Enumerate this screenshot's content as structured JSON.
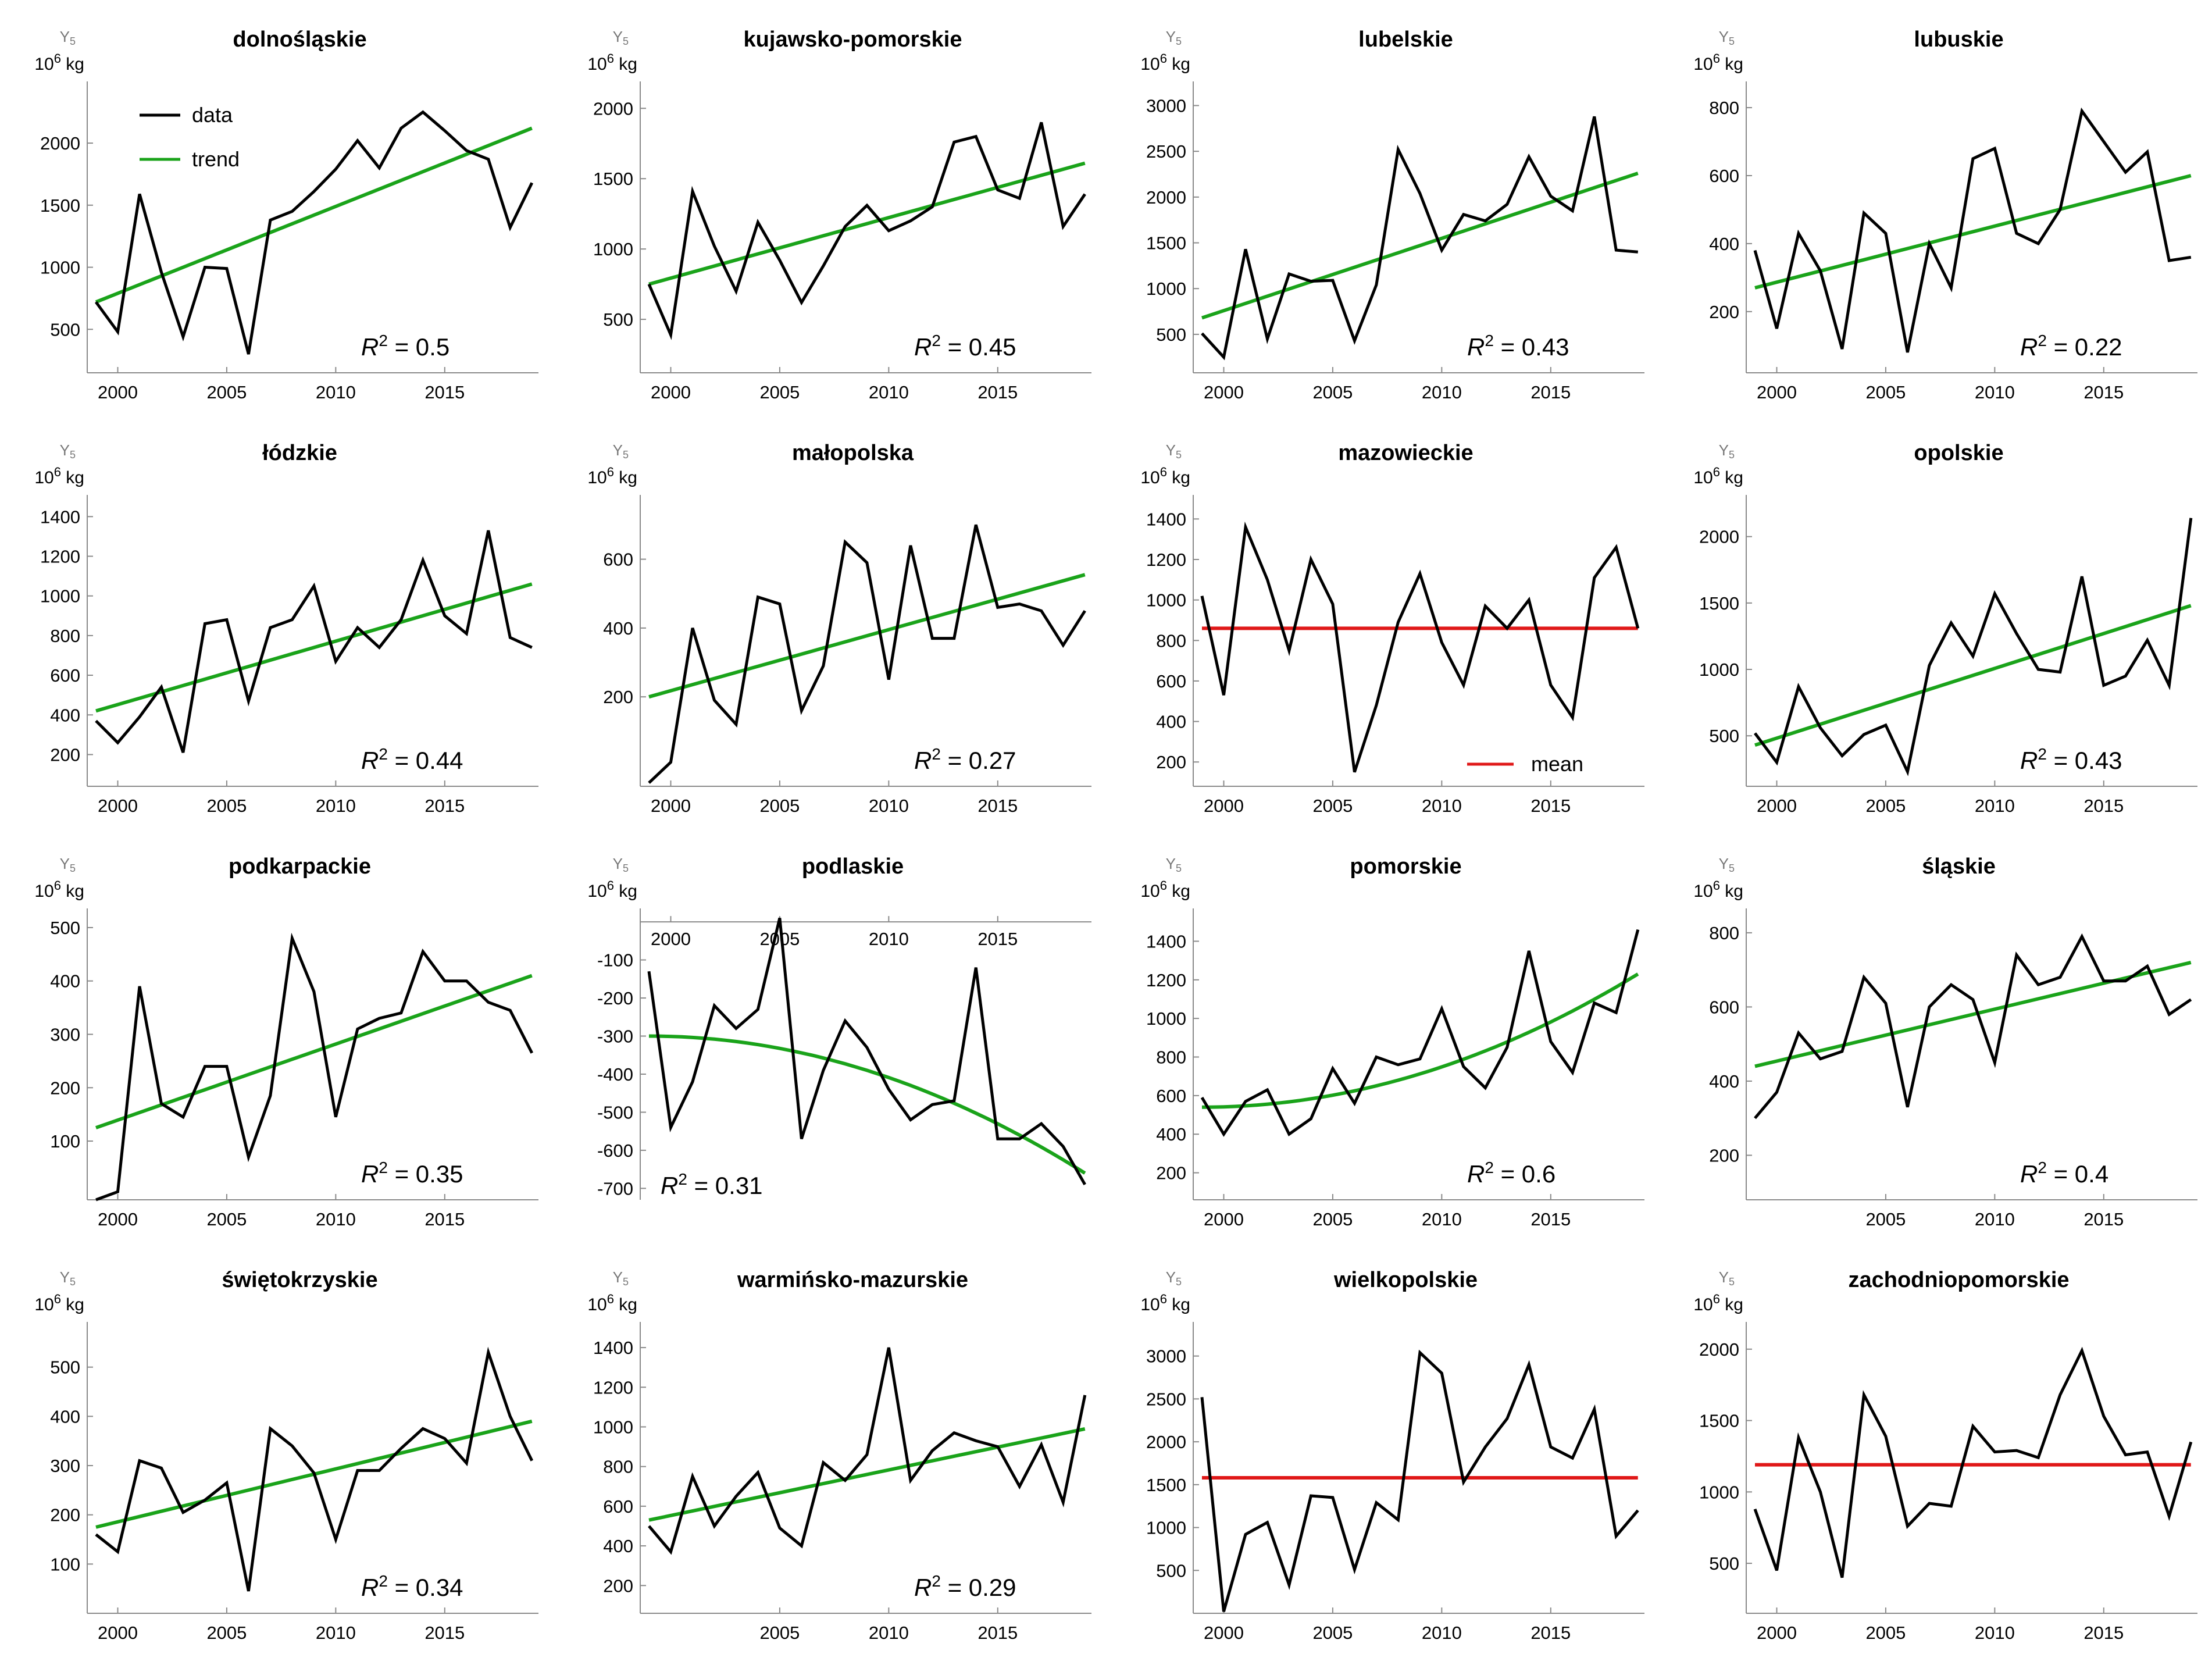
{
  "figure": {
    "y_symbol": "Y",
    "y_symbol_sub": "5",
    "y_unit_base": "10",
    "y_unit_exp": "6",
    "y_unit_suffix": "kg",
    "r2_prefix": "R",
    "r2_exp": "2",
    "r2_eq": " = "
  },
  "legend": {
    "data": "data",
    "trend": "trend",
    "mean": "mean"
  },
  "colors": {
    "data": "#000000",
    "trend": "#1aa31a",
    "mean": "#e01818",
    "axis": "#8a8a8a"
  },
  "chart_data": [
    {
      "type": "line",
      "title": "dolnośląskie",
      "years": [
        1999,
        2000,
        2001,
        2002,
        2003,
        2004,
        2005,
        2006,
        2007,
        2008,
        2009,
        2010,
        2011,
        2012,
        2013,
        2014,
        2015,
        2016,
        2017,
        2018,
        2019
      ],
      "values": [
        720,
        480,
        1590,
        960,
        440,
        1000,
        990,
        300,
        1380,
        1450,
        1610,
        1790,
        2020,
        1800,
        2120,
        2250,
        2100,
        1940,
        1870,
        1320,
        1680
      ],
      "fit": "linear",
      "fit_start": 720,
      "fit_end": 2120,
      "r2": "0.5",
      "ylim": [
        150,
        2450
      ],
      "yticks": [
        500,
        1000,
        1500,
        2000
      ],
      "xticks": [
        2000,
        2005,
        2010,
        2015
      ],
      "legend": true,
      "r2_pos": "right"
    },
    {
      "type": "line",
      "title": "kujawsko-pomorskie",
      "years": [
        1999,
        2000,
        2001,
        2002,
        2003,
        2004,
        2005,
        2006,
        2007,
        2008,
        2009,
        2010,
        2011,
        2012,
        2013,
        2014,
        2015,
        2016,
        2017,
        2018,
        2019
      ],
      "values": [
        750,
        390,
        1410,
        1020,
        700,
        1190,
        920,
        620,
        880,
        1160,
        1310,
        1130,
        1200,
        1300,
        1760,
        1800,
        1420,
        1360,
        1900,
        1160,
        1390
      ],
      "fit": "linear",
      "fit_start": 750,
      "fit_end": 1610,
      "r2": "0.45",
      "ylim": [
        120,
        2150
      ],
      "yticks": [
        500,
        1000,
        1500,
        2000
      ],
      "xticks": [
        2000,
        2005,
        2010,
        2015
      ],
      "r2_pos": "right"
    },
    {
      "type": "line",
      "title": "lubelskie",
      "years": [
        1999,
        2000,
        2001,
        2002,
        2003,
        2004,
        2005,
        2006,
        2007,
        2008,
        2009,
        2010,
        2011,
        2012,
        2013,
        2014,
        2015,
        2016,
        2017,
        2018,
        2019
      ],
      "values": [
        510,
        250,
        1430,
        450,
        1160,
        1080,
        1090,
        430,
        1040,
        2520,
        2040,
        1420,
        1810,
        1740,
        1920,
        2440,
        2010,
        1850,
        2880,
        1420,
        1400
      ],
      "fit": "linear",
      "fit_start": 680,
      "fit_end": 2260,
      "r2": "0.43",
      "ylim": [
        80,
        3200
      ],
      "yticks": [
        500,
        1000,
        1500,
        2000,
        2500,
        3000
      ],
      "xticks": [
        2000,
        2005,
        2010,
        2015
      ],
      "r2_pos": "right"
    },
    {
      "type": "line",
      "title": "lubuskie",
      "years": [
        1999,
        2000,
        2001,
        2002,
        2003,
        2004,
        2005,
        2006,
        2007,
        2008,
        2009,
        2010,
        2011,
        2012,
        2013,
        2014,
        2015,
        2016,
        2017,
        2018,
        2019
      ],
      "values": [
        380,
        150,
        430,
        320,
        90,
        490,
        430,
        80,
        400,
        270,
        650,
        680,
        430,
        400,
        500,
        790,
        700,
        610,
        670,
        350,
        360
      ],
      "fit": "linear",
      "fit_start": 270,
      "fit_end": 600,
      "r2": "0.22",
      "ylim": [
        20,
        860
      ],
      "yticks": [
        200,
        400,
        600,
        800
      ],
      "xticks": [
        2000,
        2005,
        2010,
        2015
      ],
      "r2_pos": "right"
    },
    {
      "type": "line",
      "title": "łódzkie",
      "years": [
        1999,
        2000,
        2001,
        2002,
        2003,
        2004,
        2005,
        2006,
        2007,
        2008,
        2009,
        2010,
        2011,
        2012,
        2013,
        2014,
        2015,
        2016,
        2017,
        2018,
        2019
      ],
      "values": [
        370,
        260,
        390,
        540,
        210,
        860,
        880,
        470,
        840,
        880,
        1050,
        670,
        840,
        740,
        880,
        1180,
        900,
        810,
        1330,
        790,
        740
      ],
      "fit": "linear",
      "fit_start": 420,
      "fit_end": 1060,
      "r2": "0.44",
      "ylim": [
        40,
        1480
      ],
      "yticks": [
        200,
        400,
        600,
        800,
        1000,
        1200,
        1400
      ],
      "xticks": [
        2000,
        2005,
        2010,
        2015
      ],
      "r2_pos": "right"
    },
    {
      "type": "line",
      "title": "małopolska",
      "years": [
        1999,
        2000,
        2001,
        2002,
        2003,
        2004,
        2005,
        2006,
        2007,
        2008,
        2009,
        2010,
        2011,
        2012,
        2013,
        2014,
        2015,
        2016,
        2017,
        2018,
        2019
      ],
      "values": [
        -50,
        10,
        400,
        190,
        120,
        490,
        470,
        160,
        290,
        650,
        590,
        250,
        640,
        370,
        370,
        700,
        460,
        470,
        450,
        350,
        450
      ],
      "fit": "linear",
      "fit_start": 200,
      "fit_end": 555,
      "r2": "0.27",
      "ylim": [
        -60,
        770
      ],
      "yticks": [
        200,
        400,
        600
      ],
      "xticks": [
        2000,
        2005,
        2010,
        2015
      ],
      "r2_pos": "right"
    },
    {
      "type": "line",
      "title": "mazowieckie",
      "years": [
        1999,
        2000,
        2001,
        2002,
        2003,
        2004,
        2005,
        2006,
        2007,
        2008,
        2009,
        2010,
        2011,
        2012,
        2013,
        2014,
        2015,
        2016,
        2017,
        2018,
        2019
      ],
      "values": [
        1020,
        530,
        1360,
        1100,
        750,
        1200,
        980,
        150,
        480,
        890,
        1130,
        790,
        580,
        970,
        860,
        1000,
        580,
        420,
        1110,
        1260,
        860
      ],
      "fit": "mean",
      "mean": 860,
      "r2": "",
      "ylim": [
        80,
        1490
      ],
      "yticks": [
        200,
        400,
        600,
        800,
        1000,
        1200,
        1400
      ],
      "xticks": [
        2000,
        2005,
        2010,
        2015
      ],
      "mean_legend": true
    },
    {
      "type": "line",
      "title": "opolskie",
      "years": [
        1999,
        2000,
        2001,
        2002,
        2003,
        2004,
        2005,
        2006,
        2007,
        2008,
        2009,
        2010,
        2011,
        2012,
        2013,
        2014,
        2015,
        2016,
        2017,
        2018,
        2019
      ],
      "values": [
        520,
        300,
        870,
        560,
        350,
        510,
        580,
        230,
        1030,
        1350,
        1100,
        1570,
        1270,
        1000,
        980,
        1700,
        880,
        950,
        1220,
        880,
        2140
      ],
      "fit": "linear",
      "fit_start": 430,
      "fit_end": 1480,
      "r2": "0.43",
      "ylim": [
        120,
        2270
      ],
      "yticks": [
        500,
        1000,
        1500,
        2000
      ],
      "xticks": [
        2000,
        2005,
        2010,
        2015
      ],
      "r2_pos": "right"
    },
    {
      "type": "line",
      "title": "podkarpackie",
      "years": [
        1999,
        2000,
        2001,
        2002,
        2003,
        2004,
        2005,
        2006,
        2007,
        2008,
        2009,
        2010,
        2011,
        2012,
        2013,
        2014,
        2015,
        2016,
        2017,
        2018,
        2019
      ],
      "values": [
        -10,
        5,
        390,
        170,
        145,
        240,
        240,
        70,
        185,
        480,
        380,
        145,
        310,
        330,
        340,
        455,
        400,
        400,
        360,
        345,
        265
      ],
      "fit": "linear",
      "fit_start": 125,
      "fit_end": 410,
      "r2": "0.35",
      "ylim": [
        -10,
        525
      ],
      "yticks": [
        100,
        200,
        300,
        400,
        500
      ],
      "xticks": [
        2000,
        2005,
        2010,
        2015
      ],
      "r2_pos": "right"
    },
    {
      "type": "line",
      "title": "podlaskie",
      "years": [
        1999,
        2000,
        2001,
        2002,
        2003,
        2004,
        2005,
        2006,
        2007,
        2008,
        2009,
        2010,
        2011,
        2012,
        2013,
        2014,
        2015,
        2016,
        2017,
        2018,
        2019
      ],
      "values": [
        -130,
        -540,
        -420,
        -220,
        -280,
        -230,
        10,
        -570,
        -390,
        -260,
        -330,
        -440,
        -520,
        -480,
        -470,
        -120,
        -570,
        -570,
        -530,
        -590,
        -690
      ],
      "fit": "quadratic",
      "fit_start": -300,
      "fit_end": -660,
      "r2": "0.31",
      "ylim": [
        -730,
        20
      ],
      "yticks": [
        -100,
        -200,
        -300,
        -400,
        -500,
        -600,
        -700
      ],
      "xticks": [
        2000,
        2005,
        2010,
        2015
      ],
      "r2_pos": "left",
      "xaxis_top": true
    },
    {
      "type": "line",
      "title": "pomorskie",
      "years": [
        1999,
        2000,
        2001,
        2002,
        2003,
        2004,
        2005,
        2006,
        2007,
        2008,
        2009,
        2010,
        2011,
        2012,
        2013,
        2014,
        2015,
        2016,
        2017,
        2018,
        2019
      ],
      "values": [
        590,
        400,
        570,
        630,
        400,
        480,
        740,
        560,
        800,
        760,
        790,
        1050,
        750,
        640,
        850,
        1350,
        880,
        720,
        1080,
        1030,
        1460
      ],
      "fit": "quadratic",
      "fit_start": 540,
      "fit_end": 1230,
      "r2": "0.6",
      "ylim": [
        60,
        1540
      ],
      "yticks": [
        200,
        400,
        600,
        800,
        1000,
        1200,
        1400
      ],
      "xticks": [
        2000,
        2005,
        2010,
        2015
      ],
      "r2_pos": "right"
    },
    {
      "type": "line",
      "title": "śląskie",
      "years": [
        1999,
        2000,
        2001,
        2002,
        2003,
        2004,
        2005,
        2006,
        2007,
        2008,
        2009,
        2010,
        2011,
        2012,
        2013,
        2014,
        2015,
        2016,
        2017,
        2018,
        2019
      ],
      "values": [
        300,
        370,
        530,
        460,
        480,
        680,
        610,
        330,
        600,
        660,
        620,
        450,
        740,
        660,
        680,
        790,
        670,
        670,
        710,
        580,
        620
      ],
      "fit": "linear",
      "fit_start": 440,
      "fit_end": 720,
      "r2": "0.4",
      "ylim": [
        80,
        850
      ],
      "yticks": [
        200,
        400,
        600,
        800
      ],
      "xticks": [
        2005,
        2010,
        2015
      ],
      "r2_pos": "right"
    },
    {
      "type": "line",
      "title": "świętokrzyskie",
      "years": [
        1999,
        2000,
        2001,
        2002,
        2003,
        2004,
        2005,
        2006,
        2007,
        2008,
        2009,
        2010,
        2011,
        2012,
        2013,
        2014,
        2015,
        2016,
        2017,
        2018,
        2019
      ],
      "values": [
        160,
        125,
        310,
        295,
        205,
        230,
        265,
        45,
        375,
        340,
        285,
        150,
        290,
        290,
        335,
        375,
        355,
        305,
        530,
        400,
        310
      ],
      "fit": "linear",
      "fit_start": 175,
      "fit_end": 390,
      "r2": "0.34",
      "ylim": [
        0,
        580
      ],
      "yticks": [
        100,
        200,
        300,
        400,
        500
      ],
      "xticks": [
        2000,
        2005,
        2010,
        2015
      ],
      "r2_pos": "right"
    },
    {
      "type": "line",
      "title": "warmińsko-mazurskie",
      "years": [
        1999,
        2000,
        2001,
        2002,
        2003,
        2004,
        2005,
        2006,
        2007,
        2008,
        2009,
        2010,
        2011,
        2012,
        2013,
        2014,
        2015,
        2016,
        2017,
        2018,
        2019
      ],
      "values": [
        500,
        370,
        750,
        500,
        650,
        770,
        490,
        400,
        820,
        730,
        860,
        1400,
        730,
        880,
        970,
        930,
        900,
        700,
        910,
        620,
        1160
      ],
      "fit": "linear",
      "fit_start": 530,
      "fit_end": 990,
      "r2": "0.29",
      "ylim": [
        60,
        1500
      ],
      "yticks": [
        200,
        400,
        600,
        800,
        1000,
        1200,
        1400
      ],
      "xticks": [
        2005,
        2010,
        2015
      ],
      "r2_pos": "right"
    },
    {
      "type": "line",
      "title": "wielkopolskie",
      "years": [
        1999,
        2000,
        2001,
        2002,
        2003,
        2004,
        2005,
        2006,
        2007,
        2008,
        2009,
        2010,
        2011,
        2012,
        2013,
        2014,
        2015,
        2016,
        2017,
        2018,
        2019
      ],
      "values": [
        2520,
        20,
        920,
        1060,
        330,
        1370,
        1350,
        510,
        1290,
        1090,
        3040,
        2800,
        1530,
        1940,
        2270,
        2900,
        1940,
        1810,
        2380,
        900,
        1200
      ],
      "fit": "mean",
      "mean": 1580,
      "r2": "",
      "ylim": [
        0,
        3330
      ],
      "yticks": [
        500,
        1000,
        1500,
        2000,
        2500,
        3000
      ],
      "xticks": [
        2000,
        2005,
        2010,
        2015
      ]
    },
    {
      "type": "line",
      "title": "zachodniopomorskie",
      "years": [
        1999,
        2000,
        2001,
        2002,
        2003,
        2004,
        2005,
        2006,
        2007,
        2008,
        2009,
        2010,
        2011,
        2012,
        2013,
        2014,
        2015,
        2016,
        2017,
        2018,
        2019
      ],
      "values": [
        880,
        450,
        1380,
        1000,
        400,
        1680,
        1390,
        760,
        920,
        900,
        1460,
        1280,
        1290,
        1240,
        1680,
        1990,
        1530,
        1260,
        1280,
        830,
        1350
      ],
      "fit": "mean",
      "mean": 1190,
      "r2": "",
      "ylim": [
        150,
        2150
      ],
      "yticks": [
        500,
        1000,
        1500,
        2000
      ],
      "xticks": [
        2000,
        2005,
        2010,
        2015
      ]
    }
  ]
}
